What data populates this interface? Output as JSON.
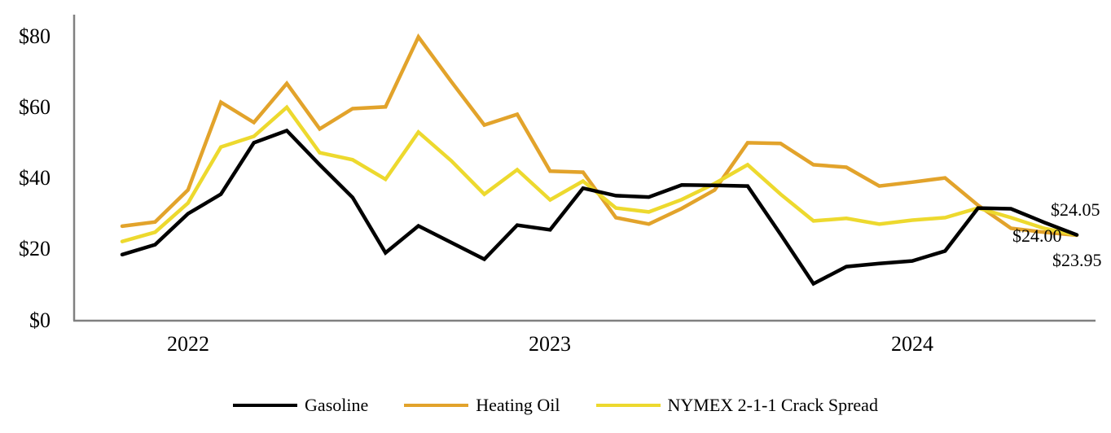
{
  "chart_data": {
    "type": "line",
    "title": "",
    "x_axis": {
      "years": [
        "2022",
        "2023",
        "2024"
      ],
      "year_point_indices": [
        2,
        13,
        24
      ]
    },
    "y_axis": {
      "ticks": [
        "$0",
        "$20",
        "$40",
        "$60",
        "$80"
      ],
      "tick_values": [
        0,
        20,
        40,
        60,
        80
      ],
      "min": 0,
      "max": 80
    },
    "axis_color": "#808080",
    "legend_position": "bottom",
    "grid": false,
    "series": [
      {
        "name": "Gasoline",
        "color": "#000000",
        "end_label": "$24.05",
        "values": [
          18.5,
          21.3,
          30,
          35.5,
          50,
          53.4,
          43.8,
          34.6,
          19,
          26.6,
          21.9,
          17.2,
          26.8,
          25.5,
          37.2,
          35.1,
          34.7,
          38.1,
          38,
          37.8,
          24.2,
          10.3,
          15.1,
          16,
          16.7,
          19.5,
          31.6,
          31.4,
          27.6,
          24.05
        ]
      },
      {
        "name": "Heating Oil",
        "color": "#E2A32B",
        "end_label": "$23.95",
        "values": [
          26.5,
          27.7,
          36.7,
          61.4,
          55.7,
          66.7,
          53.9,
          59.6,
          60.1,
          79.8,
          67.2,
          55,
          58,
          42,
          41.7,
          28.9,
          27.1,
          31.5,
          36.7,
          50,
          49.8,
          43.8,
          43.1,
          37.8,
          38.9,
          40.1,
          32.4,
          25.9,
          24.8,
          23.95
        ]
      },
      {
        "name": "NYMEX 2-1-1 Crack Spread",
        "color": "#EDD92E",
        "end_label": "$24.00",
        "values": [
          22.2,
          24.8,
          33,
          48.8,
          51.8,
          60,
          47.2,
          45.2,
          39.7,
          53,
          44.9,
          35.5,
          42.4,
          33.9,
          39.2,
          31.6,
          30.5,
          34,
          38.5,
          43.8,
          35.5,
          28,
          28.7,
          27.1,
          28.2,
          28.9,
          31.6,
          28.9,
          25.9,
          24
        ]
      }
    ],
    "end_labels": [
      {
        "text": "$24.05",
        "series": "Gasoline"
      },
      {
        "text": "$24.00",
        "series": "NYMEX 2-1-1 Crack Spread"
      },
      {
        "text": "$23.95",
        "series": "Heating Oil"
      }
    ]
  }
}
